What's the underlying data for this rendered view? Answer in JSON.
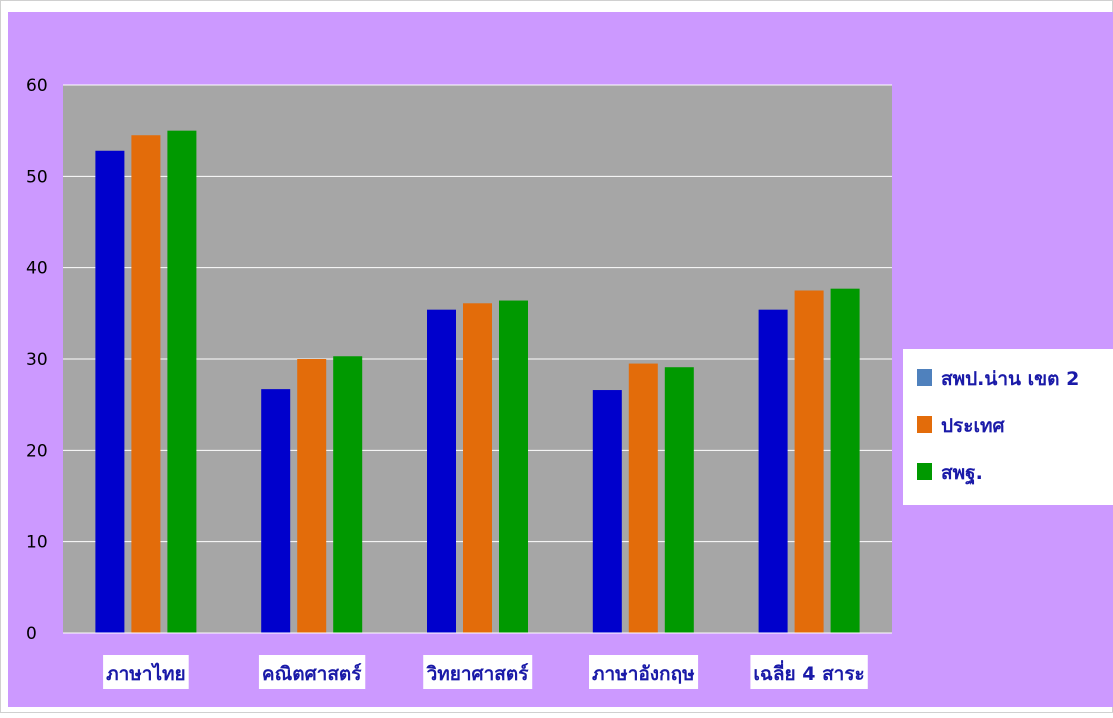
{
  "chart_data": {
    "type": "bar",
    "title": "",
    "xlabel": "",
    "ylabel": "",
    "categories": [
      "ภาษาไทย",
      "คณิตศาสตร์",
      "วิทยาศาสตร์",
      "ภาษาอังกฤษ",
      "เฉลี่ย 4 สาระ"
    ],
    "series": [
      {
        "name": "สพป.น่าน เขต 2",
        "color": "#0000cc",
        "values": [
          52.8,
          26.7,
          35.4,
          26.6,
          35.4
        ]
      },
      {
        "name": "ประเทศ",
        "color": "#e36c0a",
        "values": [
          54.5,
          30.0,
          36.1,
          29.5,
          37.5
        ]
      },
      {
        "name": "สพฐ.",
        "color": "#009900",
        "values": [
          55.0,
          30.3,
          36.4,
          29.1,
          37.7
        ]
      }
    ],
    "yticks": [
      "0",
      "10",
      "20",
      "30",
      "40",
      "50",
      "60"
    ],
    "ylim": [
      0,
      60
    ],
    "grid": true,
    "legend_position": "right",
    "colors": {
      "outer_background": "#cc99ff",
      "plot_background": "#a6a6a6",
      "gridline": "#ffffff",
      "label_text": "#1a1aa8",
      "label_box": "#ffffff",
      "legend_swatch_series_1": "#4f81bd"
    }
  }
}
